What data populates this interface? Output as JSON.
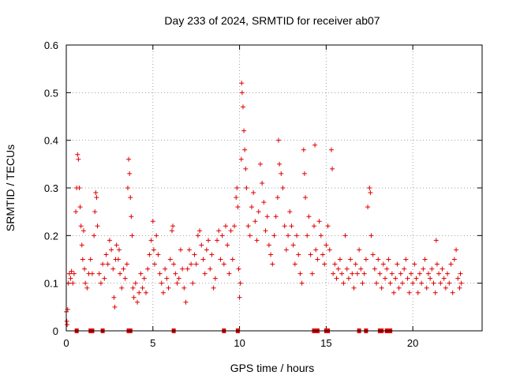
{
  "chart_data": {
    "type": "scatter",
    "title": "Day 233 of 2024, SRMTID for receiver ab07",
    "xlabel": "GPS time / hours",
    "ylabel": "SRMTID / TECUs",
    "xlim": [
      0,
      24
    ],
    "ylim": [
      0,
      0.6
    ],
    "x_ticks": [
      0,
      5,
      10,
      15,
      20
    ],
    "x_tick_labels": [
      "0",
      "5",
      "10",
      "15",
      "20"
    ],
    "y_ticks": [
      0,
      0.1,
      0.2,
      0.3,
      0.4,
      0.5,
      0.6
    ],
    "y_tick_labels": [
      "0",
      "0.1",
      "0.2",
      "0.3",
      "0.4",
      "0.5",
      "0.6"
    ],
    "grid": true,
    "marker": "+",
    "color": "#e00000",
    "series": [
      {
        "name": "SRMTID",
        "points": [
          [
            0.0,
            0.04
          ],
          [
            0.03,
            0.02
          ],
          [
            0.05,
            0.013
          ],
          [
            0.08,
            0.045
          ],
          [
            0.12,
            0.1
          ],
          [
            0.18,
            0.12
          ],
          [
            0.25,
            0.11
          ],
          [
            0.3,
            0.125
          ],
          [
            0.38,
            0.1
          ],
          [
            0.45,
            0.12
          ],
          [
            0.55,
            0.25
          ],
          [
            0.6,
            0.3
          ],
          [
            0.65,
            0.37
          ],
          [
            0.7,
            0.36
          ],
          [
            0.75,
            0.3
          ],
          [
            0.8,
            0.26
          ],
          [
            0.85,
            0.22
          ],
          [
            0.9,
            0.18
          ],
          [
            0.95,
            0.15
          ],
          [
            1.0,
            0.21
          ],
          [
            1.05,
            0.13
          ],
          [
            1.1,
            0.1
          ],
          [
            1.2,
            0.09
          ],
          [
            1.3,
            0.12
          ],
          [
            1.4,
            0.15
          ],
          [
            1.5,
            0.12
          ],
          [
            1.6,
            0.2
          ],
          [
            1.65,
            0.25
          ],
          [
            1.7,
            0.29
          ],
          [
            1.75,
            0.28
          ],
          [
            1.8,
            0.22
          ],
          [
            1.9,
            0.12
          ],
          [
            2.0,
            0.1
          ],
          [
            2.1,
            0.14
          ],
          [
            2.2,
            0.11
          ],
          [
            2.3,
            0.16
          ],
          [
            2.4,
            0.14
          ],
          [
            2.5,
            0.19
          ],
          [
            2.6,
            0.17
          ],
          [
            2.7,
            0.13
          ],
          [
            2.75,
            0.07
          ],
          [
            2.8,
            0.05
          ],
          [
            2.85,
            0.15
          ],
          [
            2.9,
            0.18
          ],
          [
            3.0,
            0.15
          ],
          [
            3.05,
            0.17
          ],
          [
            3.1,
            0.12
          ],
          [
            3.2,
            0.09
          ],
          [
            3.3,
            0.13
          ],
          [
            3.4,
            0.11
          ],
          [
            3.5,
            0.14
          ],
          [
            3.55,
            0.3
          ],
          [
            3.6,
            0.36
          ],
          [
            3.65,
            0.33
          ],
          [
            3.7,
            0.28
          ],
          [
            3.75,
            0.24
          ],
          [
            3.8,
            0.2
          ],
          [
            3.85,
            0.09
          ],
          [
            3.9,
            0.07
          ],
          [
            4.0,
            0.1
          ],
          [
            4.1,
            0.06
          ],
          [
            4.2,
            0.08
          ],
          [
            4.3,
            0.12
          ],
          [
            4.4,
            0.09
          ],
          [
            4.5,
            0.11
          ],
          [
            4.6,
            0.08
          ],
          [
            4.7,
            0.13
          ],
          [
            4.8,
            0.16
          ],
          [
            4.9,
            0.19
          ],
          [
            5.0,
            0.23
          ],
          [
            5.05,
            0.17
          ],
          [
            5.1,
            0.14
          ],
          [
            5.2,
            0.2
          ],
          [
            5.3,
            0.16
          ],
          [
            5.4,
            0.12
          ],
          [
            5.5,
            0.1
          ],
          [
            5.6,
            0.08
          ],
          [
            5.7,
            0.13
          ],
          [
            5.8,
            0.11
          ],
          [
            5.9,
            0.09
          ],
          [
            6.0,
            0.15
          ],
          [
            6.1,
            0.21
          ],
          [
            6.15,
            0.22
          ],
          [
            6.2,
            0.14
          ],
          [
            6.3,
            0.12
          ],
          [
            6.4,
            0.1
          ],
          [
            6.5,
            0.11
          ],
          [
            6.6,
            0.17
          ],
          [
            6.7,
            0.13
          ],
          [
            6.8,
            0.09
          ],
          [
            6.9,
            0.06
          ],
          [
            7.0,
            0.13
          ],
          [
            7.1,
            0.17
          ],
          [
            7.2,
            0.14
          ],
          [
            7.3,
            0.1
          ],
          [
            7.4,
            0.16
          ],
          [
            7.5,
            0.14
          ],
          [
            7.6,
            0.2
          ],
          [
            7.7,
            0.21
          ],
          [
            7.8,
            0.18
          ],
          [
            7.9,
            0.15
          ],
          [
            8.0,
            0.12
          ],
          [
            8.1,
            0.17
          ],
          [
            8.2,
            0.19
          ],
          [
            8.3,
            0.13
          ],
          [
            8.4,
            0.16
          ],
          [
            8.5,
            0.09
          ],
          [
            8.6,
            0.11
          ],
          [
            8.7,
            0.19
          ],
          [
            8.8,
            0.21
          ],
          [
            8.9,
            0.15
          ],
          [
            9.0,
            0.2
          ],
          [
            9.1,
            0.14
          ],
          [
            9.2,
            0.22
          ],
          [
            9.3,
            0.18
          ],
          [
            9.4,
            0.12
          ],
          [
            9.5,
            0.21
          ],
          [
            9.6,
            0.15
          ],
          [
            9.7,
            0.22
          ],
          [
            9.8,
            0.28
          ],
          [
            9.85,
            0.3
          ],
          [
            9.9,
            0.26
          ],
          [
            9.95,
            0.13
          ],
          [
            10.0,
            0.07
          ],
          [
            10.05,
            0.1
          ],
          [
            10.1,
            0.36
          ],
          [
            10.12,
            0.52
          ],
          [
            10.15,
            0.5
          ],
          [
            10.2,
            0.47
          ],
          [
            10.25,
            0.42
          ],
          [
            10.3,
            0.38
          ],
          [
            10.35,
            0.34
          ],
          [
            10.4,
            0.3
          ],
          [
            10.5,
            0.22
          ],
          [
            10.6,
            0.2
          ],
          [
            10.7,
            0.26
          ],
          [
            10.8,
            0.29
          ],
          [
            10.9,
            0.23
          ],
          [
            11.0,
            0.19
          ],
          [
            11.1,
            0.25
          ],
          [
            11.2,
            0.35
          ],
          [
            11.3,
            0.31
          ],
          [
            11.4,
            0.27
          ],
          [
            11.5,
            0.21
          ],
          [
            11.6,
            0.24
          ],
          [
            11.7,
            0.18
          ],
          [
            11.8,
            0.16
          ],
          [
            11.9,
            0.14
          ],
          [
            12.0,
            0.2
          ],
          [
            12.1,
            0.24
          ],
          [
            12.2,
            0.28
          ],
          [
            12.25,
            0.4
          ],
          [
            12.3,
            0.35
          ],
          [
            12.4,
            0.33
          ],
          [
            12.5,
            0.3
          ],
          [
            12.6,
            0.22
          ],
          [
            12.7,
            0.17
          ],
          [
            12.8,
            0.2
          ],
          [
            12.9,
            0.25
          ],
          [
            13.0,
            0.22
          ],
          [
            13.1,
            0.18
          ],
          [
            13.2,
            0.14
          ],
          [
            13.3,
            0.2
          ],
          [
            13.4,
            0.16
          ],
          [
            13.5,
            0.12
          ],
          [
            13.6,
            0.1
          ],
          [
            13.7,
            0.38
          ],
          [
            13.75,
            0.33
          ],
          [
            13.8,
            0.28
          ],
          [
            13.9,
            0.2
          ],
          [
            14.0,
            0.24
          ],
          [
            14.1,
            0.16
          ],
          [
            14.2,
            0.12
          ],
          [
            14.3,
            0.22
          ],
          [
            14.35,
            0.39
          ],
          [
            14.4,
            0.17
          ],
          [
            14.5,
            0.15
          ],
          [
            14.6,
            0.23
          ],
          [
            14.7,
            0.2
          ],
          [
            14.8,
            0.16
          ],
          [
            14.9,
            0.14
          ],
          [
            15.0,
            0.18
          ],
          [
            15.1,
            0.22
          ],
          [
            15.2,
            0.17
          ],
          [
            15.3,
            0.38
          ],
          [
            15.35,
            0.34
          ],
          [
            15.4,
            0.12
          ],
          [
            15.5,
            0.14
          ],
          [
            15.6,
            0.11
          ],
          [
            15.7,
            0.13
          ],
          [
            15.8,
            0.15
          ],
          [
            15.9,
            0.12
          ],
          [
            16.0,
            0.1
          ],
          [
            16.1,
            0.2
          ],
          [
            16.2,
            0.13
          ],
          [
            16.3,
            0.11
          ],
          [
            16.4,
            0.15
          ],
          [
            16.5,
            0.12
          ],
          [
            16.6,
            0.09
          ],
          [
            16.7,
            0.14
          ],
          [
            16.8,
            0.12
          ],
          [
            16.9,
            0.17
          ],
          [
            17.0,
            0.13
          ],
          [
            17.1,
            0.1
          ],
          [
            17.2,
            0.12
          ],
          [
            17.3,
            0.15
          ],
          [
            17.4,
            0.26
          ],
          [
            17.5,
            0.3
          ],
          [
            17.55,
            0.29
          ],
          [
            17.6,
            0.2
          ],
          [
            17.7,
            0.16
          ],
          [
            17.8,
            0.13
          ],
          [
            17.9,
            0.1
          ],
          [
            18.0,
            0.15
          ],
          [
            18.1,
            0.12
          ],
          [
            18.2,
            0.09
          ],
          [
            18.3,
            0.14
          ],
          [
            18.4,
            0.11
          ],
          [
            18.5,
            0.13
          ],
          [
            18.6,
            0.15
          ],
          [
            18.7,
            0.1
          ],
          [
            18.8,
            0.12
          ],
          [
            18.9,
            0.08
          ],
          [
            19.0,
            0.11
          ],
          [
            19.1,
            0.14
          ],
          [
            19.2,
            0.09
          ],
          [
            19.3,
            0.12
          ],
          [
            19.4,
            0.1
          ],
          [
            19.5,
            0.13
          ],
          [
            19.6,
            0.15
          ],
          [
            19.7,
            0.11
          ],
          [
            19.8,
            0.08
          ],
          [
            19.9,
            0.12
          ],
          [
            20.0,
            0.1
          ],
          [
            20.1,
            0.14
          ],
          [
            20.2,
            0.11
          ],
          [
            20.3,
            0.08
          ],
          [
            20.4,
            0.12
          ],
          [
            20.5,
            0.1
          ],
          [
            20.6,
            0.13
          ],
          [
            20.7,
            0.15
          ],
          [
            20.8,
            0.09
          ],
          [
            20.9,
            0.12
          ],
          [
            21.0,
            0.11
          ],
          [
            21.1,
            0.13
          ],
          [
            21.2,
            0.1
          ],
          [
            21.3,
            0.08
          ],
          [
            21.35,
            0.19
          ],
          [
            21.4,
            0.14
          ],
          [
            21.5,
            0.12
          ],
          [
            21.6,
            0.1
          ],
          [
            21.7,
            0.13
          ],
          [
            21.8,
            0.11
          ],
          [
            21.9,
            0.09
          ],
          [
            22.0,
            0.12
          ],
          [
            22.1,
            0.1
          ],
          [
            22.2,
            0.14
          ],
          [
            22.3,
            0.08
          ],
          [
            22.4,
            0.15
          ],
          [
            22.5,
            0.17
          ],
          [
            22.6,
            0.11
          ],
          [
            22.7,
            0.09
          ],
          [
            22.75,
            0.12
          ],
          [
            22.8,
            0.1
          ]
        ]
      }
    ],
    "zero_points_x": [
      0.6,
      1.4,
      1.5,
      2.1,
      3.6,
      3.7,
      6.2,
      9.1,
      9.9,
      14.3,
      14.4,
      14.5,
      15.0,
      15.1,
      16.9,
      17.3,
      18.1,
      18.2,
      18.5,
      18.6,
      18.7
    ]
  }
}
